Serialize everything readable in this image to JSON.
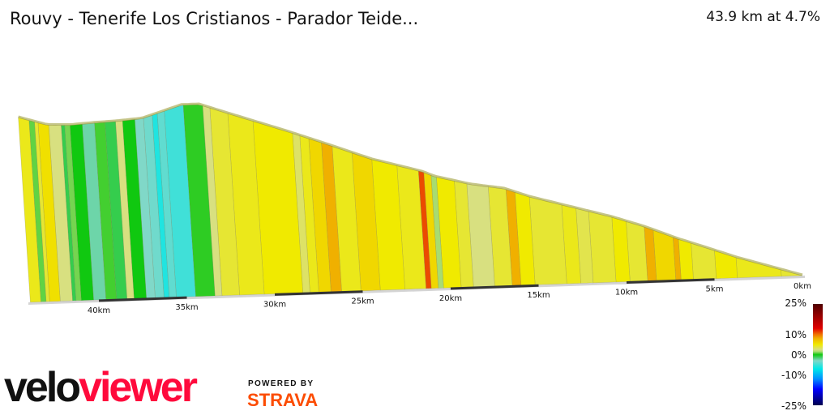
{
  "header": {
    "title": "Rouvy - Tenerife Los Cristianos - Parador Teide...",
    "summary": "43.9 km at 4.7%"
  },
  "branding": {
    "logo_part1": "velo",
    "logo_part2": "viewer",
    "powered_by": "POWERED BY",
    "strava": "STRAVA"
  },
  "chart_data": {
    "type": "area",
    "title": "",
    "xlabel": "",
    "ylabel": "",
    "x_direction": "reversed",
    "xlim": [
      0,
      43.9
    ],
    "x_ticks": [
      {
        "km": 0,
        "label": "0km"
      },
      {
        "km": 5,
        "label": "5km"
      },
      {
        "km": 10,
        "label": "10km"
      },
      {
        "km": 15,
        "label": "15km"
      },
      {
        "km": 20,
        "label": "20km"
      },
      {
        "km": 25,
        "label": "25km"
      },
      {
        "km": 30,
        "label": "30km"
      },
      {
        "km": 35,
        "label": "35km"
      },
      {
        "km": 40,
        "label": "40km"
      }
    ],
    "distance_km": 43.9,
    "average_grade_pct": 4.7,
    "elevation_profile": [
      [
        0,
        0
      ],
      [
        3.7,
        225
      ],
      [
        5.1,
        325
      ],
      [
        6.9,
        450
      ],
      [
        8.8,
        600
      ],
      [
        10.6,
        720
      ],
      [
        13.4,
        875
      ],
      [
        15.2,
        975
      ],
      [
        16.6,
        1075
      ],
      [
        18.5,
        1135
      ],
      [
        20.5,
        1235
      ],
      [
        21.2,
        1295
      ],
      [
        24.0,
        1450
      ],
      [
        26.3,
        1620
      ],
      [
        28.6,
        1785
      ],
      [
        32.3,
        2035
      ],
      [
        33.6,
        2125
      ],
      [
        34.6,
        2125
      ],
      [
        35.7,
        2060
      ],
      [
        36.9,
        1990
      ],
      [
        38.3,
        1970
      ],
      [
        39.6,
        1960
      ],
      [
        41.0,
        1945
      ],
      [
        42.3,
        1955
      ],
      [
        43.9,
        2050
      ]
    ],
    "grade_segments": [
      [
        0,
        1.2,
        4
      ],
      [
        1.2,
        3.7,
        4.5
      ],
      [
        3.7,
        4.9,
        5
      ],
      [
        4.9,
        6.2,
        4
      ],
      [
        6.2,
        6.9,
        5
      ],
      [
        6.9,
        7.2,
        8
      ],
      [
        7.2,
        8.3,
        6
      ],
      [
        8.3,
        8.8,
        8
      ],
      [
        8.8,
        9.8,
        4
      ],
      [
        9.8,
        10.6,
        5
      ],
      [
        10.6,
        11.9,
        4
      ],
      [
        11.9,
        12.6,
        3.5
      ],
      [
        12.6,
        13.4,
        4.5
      ],
      [
        13.4,
        15.2,
        4
      ],
      [
        15.2,
        16.0,
        5
      ],
      [
        16.0,
        16.5,
        8
      ],
      [
        16.5,
        17.5,
        4
      ],
      [
        17.5,
        18.7,
        2.5
      ],
      [
        18.7,
        19.4,
        4
      ],
      [
        19.4,
        20.4,
        5
      ],
      [
        20.4,
        20.7,
        1.5
      ],
      [
        20.7,
        21.1,
        6
      ],
      [
        21.1,
        21.4,
        11
      ],
      [
        21.4,
        22.6,
        4.5
      ],
      [
        22.6,
        24.0,
        5
      ],
      [
        24.0,
        25.1,
        6
      ],
      [
        25.1,
        26.2,
        4.5
      ],
      [
        26.2,
        26.8,
        8
      ],
      [
        26.8,
        27.5,
        6
      ],
      [
        27.5,
        28.0,
        4.5
      ],
      [
        28.0,
        28.4,
        3
      ],
      [
        28.4,
        30.6,
        5
      ],
      [
        30.6,
        32.0,
        4.5
      ],
      [
        32.0,
        33.0,
        4
      ],
      [
        33.0,
        33.4,
        2.5
      ],
      [
        33.4,
        34.5,
        0.3
      ],
      [
        34.5,
        35.6,
        -5
      ],
      [
        35.6,
        36.0,
        -4
      ],
      [
        36.0,
        36.3,
        -6
      ],
      [
        36.3,
        36.8,
        -3.5
      ],
      [
        36.8,
        37.3,
        -3
      ],
      [
        37.3,
        38.0,
        0
      ],
      [
        38.0,
        38.4,
        2.5
      ],
      [
        38.4,
        39.0,
        -1
      ],
      [
        39.0,
        39.6,
        0.5
      ],
      [
        39.6,
        40.3,
        -2.5
      ],
      [
        40.3,
        41.0,
        0
      ],
      [
        41.0,
        41.3,
        1
      ],
      [
        41.3,
        41.5,
        -1
      ],
      [
        41.5,
        42.2,
        2.5
      ],
      [
        42.2,
        42.8,
        5.5
      ],
      [
        42.8,
        43.0,
        4
      ],
      [
        43.0,
        43.3,
        0.8
      ],
      [
        43.3,
        43.9,
        4.5
      ]
    ],
    "legend": {
      "labels": [
        "25%",
        "10%",
        "0%",
        "-10%",
        "-25%"
      ],
      "range": [
        -25,
        25
      ],
      "colorscale": [
        [
          -25,
          "#000050"
        ],
        [
          -17,
          "#0000ff"
        ],
        [
          -12,
          "#0090ff"
        ],
        [
          -7,
          "#00e8e8"
        ],
        [
          -3,
          "#80d8c8"
        ],
        [
          0,
          "#10c810"
        ],
        [
          1.5,
          "#a8dc70"
        ],
        [
          2.5,
          "#d8e080"
        ],
        [
          5,
          "#f0ea00"
        ],
        [
          8,
          "#f0b000"
        ],
        [
          10,
          "#f07000"
        ],
        [
          13,
          "#e00000"
        ],
        [
          25,
          "#500000"
        ]
      ]
    }
  }
}
